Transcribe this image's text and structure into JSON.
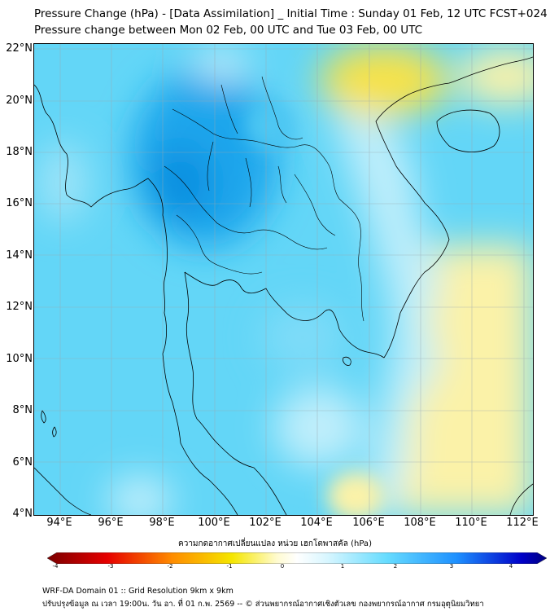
{
  "title": {
    "line1": "Pressure Change (hPa) - [Data Assimilation] _ Initial Time : Sunday 01 Feb, 12 UTC FCST+024",
    "line2": "Pressure change between Mon 02 Feb, 00 UTC and Tue 03 Feb, 00 UTC"
  },
  "axes": {
    "lat_labels": [
      "22°N",
      "20°N",
      "18°N",
      "16°N",
      "14°N",
      "12°N",
      "10°N",
      "8°N",
      "6°N",
      "4°N"
    ],
    "lon_labels": [
      "94°E",
      "96°E",
      "98°E",
      "100°E",
      "102°E",
      "104°E",
      "106°E",
      "108°E",
      "110°E",
      "112°E"
    ]
  },
  "colorbar": {
    "caption": "ความกดอากาศเปลี่ยนแปลง หน่วย เฮกโตพาสคัล (hPa)",
    "ticks": [
      "-4",
      "-3",
      "-2",
      "-1",
      "0",
      "1",
      "2",
      "3",
      "4"
    ],
    "range": [
      -4,
      4
    ],
    "colors": {
      "neg_dark": "#7a0000",
      "neg_red": "#e60000",
      "neg_orange": "#ff8c00",
      "neg_yellow": "#f5e600",
      "near_zero": "#ffffff",
      "pos_cyan": "#66dcff",
      "pos_blue": "#1e90ff",
      "pos_dark": "#000080"
    }
  },
  "map": {
    "colors": {
      "cyan_field": "#63d6f7",
      "strong_blue": "#1aa6ec",
      "pale_blue": "#bfeefb",
      "pale_yellow": "#fbf2a8",
      "yellow": "#f7e24a",
      "border_line": "#000000",
      "grid_line": "#9aa8b0"
    }
  },
  "footer": {
    "line1": "WRF-DA Domain 01 :: Grid Resolution 9km x 9km",
    "line2": "ปรับปรุงข้อมูล ณ เวลา 19:00น. วัน อา. ที่ 01 ก.พ. 2569 -- © ส่วนพยากรณ์อากาศเชิงตัวเลข กองพยากรณ์อากาศ กรมอุตุนิยมวิทยา"
  }
}
